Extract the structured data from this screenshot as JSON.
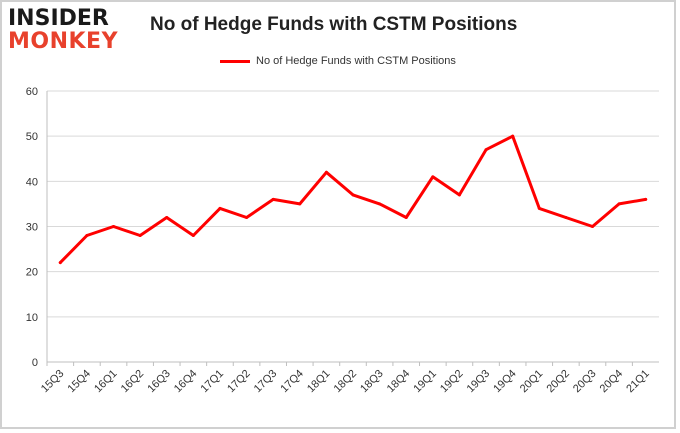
{
  "logo": {
    "line1": "INSIDER",
    "line2": "MONKEY"
  },
  "chart_data": {
    "type": "line",
    "title": "No of Hedge Funds with CSTM Positions",
    "xlabel": "",
    "ylabel": "",
    "categories": [
      "15Q3",
      "15Q4",
      "16Q1",
      "16Q2",
      "16Q3",
      "16Q4",
      "17Q1",
      "17Q2",
      "17Q3",
      "17Q4",
      "18Q1",
      "18Q2",
      "18Q3",
      "18Q4",
      "19Q1",
      "19Q2",
      "19Q3",
      "19Q4",
      "20Q1",
      "20Q2",
      "20Q3",
      "20Q4",
      "21Q1"
    ],
    "series": [
      {
        "name": "No of Hedge Funds with CSTM Positions",
        "color": "#ff0000",
        "values": [
          22,
          28,
          30,
          28,
          32,
          28,
          34,
          32,
          36,
          35,
          42,
          37,
          35,
          32,
          41,
          37,
          47,
          50,
          34,
          32,
          30,
          35,
          36
        ]
      }
    ],
    "ylim": [
      0,
      60
    ],
    "yticks": [
      0,
      10,
      20,
      30,
      40,
      50,
      60
    ],
    "grid": true,
    "legend": "top-center"
  }
}
